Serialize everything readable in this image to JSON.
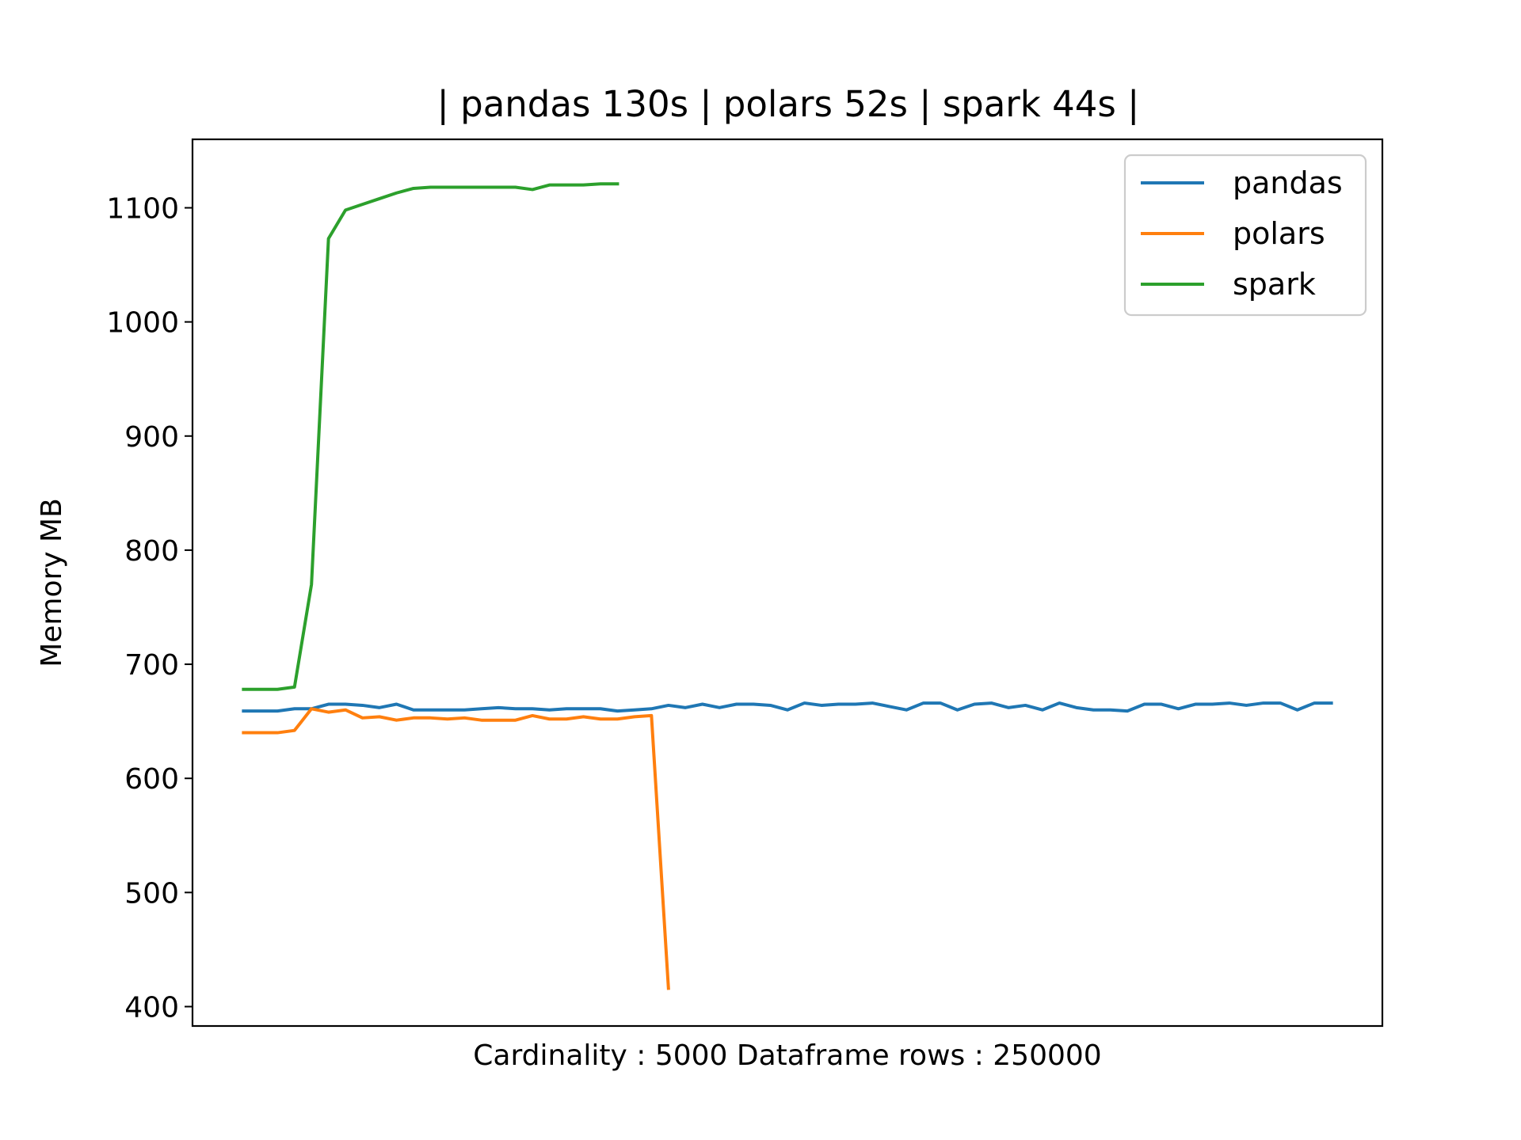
{
  "chart_data": {
    "type": "line",
    "title": "| pandas 130s | polars 52s | spark 44s |",
    "xlabel": "Cardinality : 5000 Dataframe rows : 250000",
    "ylabel": "Memory MB",
    "xlim": [
      -3,
      67
    ],
    "ylim": [
      383,
      1160
    ],
    "yticks": [
      400,
      500,
      600,
      700,
      800,
      900,
      1000,
      1100
    ],
    "xticks_visible": false,
    "legend_position": "top-right",
    "series": [
      {
        "name": "pandas",
        "color": "#1f77b4",
        "values": [
          659,
          659,
          659,
          661,
          661,
          665,
          665,
          664,
          662,
          665,
          660,
          660,
          660,
          660,
          661,
          662,
          661,
          661,
          660,
          661,
          661,
          661,
          659,
          660,
          661,
          664,
          662,
          665,
          662,
          665,
          665,
          664,
          660,
          666,
          664,
          665,
          665,
          666,
          663,
          660,
          666,
          666,
          660,
          665,
          666,
          662,
          664,
          660,
          666,
          662,
          660,
          660,
          659,
          665,
          665,
          661,
          665,
          665,
          666,
          664,
          666,
          666,
          660,
          666,
          666
        ]
      },
      {
        "name": "polars",
        "color": "#ff7f0e",
        "values": [
          640,
          640,
          640,
          642,
          661,
          658,
          660,
          653,
          654,
          651,
          653,
          653,
          652,
          653,
          651,
          651,
          651,
          655,
          652,
          652,
          654,
          652,
          652,
          654,
          655,
          416
        ]
      },
      {
        "name": "spark",
        "color": "#2ca02c",
        "values": [
          678,
          678,
          678,
          680,
          770,
          1073,
          1098,
          1103,
          1108,
          1113,
          1117,
          1118,
          1118,
          1118,
          1118,
          1118,
          1118,
          1116,
          1120,
          1120,
          1120,
          1121,
          1121
        ]
      }
    ]
  }
}
